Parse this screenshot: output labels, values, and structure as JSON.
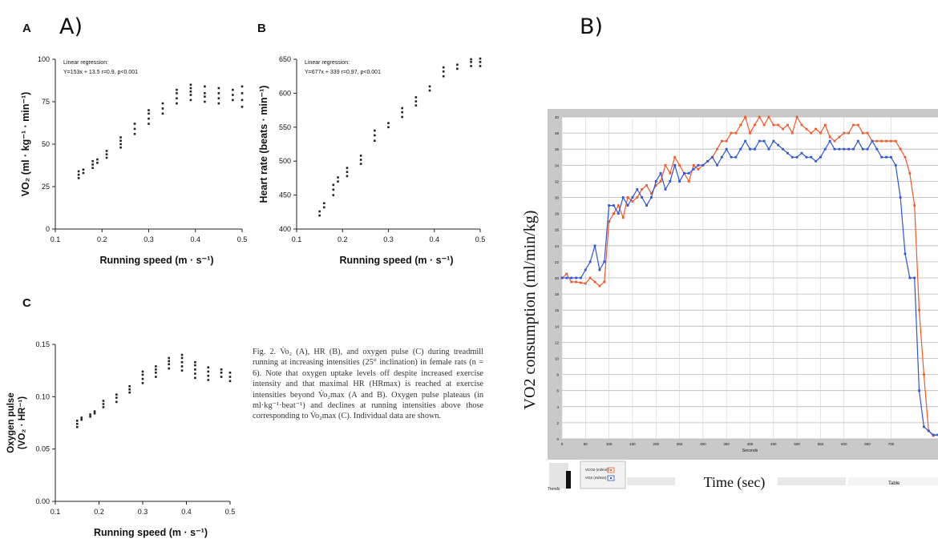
{
  "figure": {
    "label_A": "A)",
    "label_B": "B)"
  },
  "caption": "Fig. 2. V̇o₂ (A), HR (B), and oxygen pulse (C) during treadmill running at increasing intensities (25° inclination) in female rats (n = 6). Note that oxygen uptake levels off despite increased exercise intensity and that maximal HR (HRmax) is reached at exercise intensities beyond V̇o₂max (A and B). Oxygen pulse plateaus (in ml·kg⁻¹·beat⁻¹) and declines at running intensities above those corresponding to V̇o₂max (C). Individual data are shown.",
  "chart_data": [
    {
      "panel": "A",
      "type": "scatter",
      "xlabel": "Running speed (m · s⁻¹)",
      "ylabel": "VO₂ (ml · kg⁻¹ · min⁻¹)",
      "xlim": [
        0.1,
        0.5
      ],
      "ylim": [
        0,
        100
      ],
      "xticks": [
        0.1,
        0.2,
        0.3,
        0.4,
        0.5
      ],
      "yticks": [
        0,
        25,
        50,
        75,
        100
      ],
      "annotation": [
        "Linear regression:",
        "Y=153x + 13.5  r=0.9,  p<0.001"
      ],
      "points": [
        [
          0.15,
          30
        ],
        [
          0.15,
          32
        ],
        [
          0.15,
          34
        ],
        [
          0.16,
          33
        ],
        [
          0.16,
          35
        ],
        [
          0.18,
          36
        ],
        [
          0.18,
          38
        ],
        [
          0.18,
          40
        ],
        [
          0.19,
          39
        ],
        [
          0.19,
          41
        ],
        [
          0.21,
          42
        ],
        [
          0.21,
          44
        ],
        [
          0.21,
          46
        ],
        [
          0.24,
          48
        ],
        [
          0.24,
          50
        ],
        [
          0.24,
          52
        ],
        [
          0.24,
          54
        ],
        [
          0.27,
          56
        ],
        [
          0.27,
          59
        ],
        [
          0.27,
          62
        ],
        [
          0.3,
          62
        ],
        [
          0.3,
          65
        ],
        [
          0.3,
          68
        ],
        [
          0.3,
          70
        ],
        [
          0.33,
          68
        ],
        [
          0.33,
          71
        ],
        [
          0.33,
          74
        ],
        [
          0.36,
          74
        ],
        [
          0.36,
          77
        ],
        [
          0.36,
          80
        ],
        [
          0.36,
          82
        ],
        [
          0.39,
          76
        ],
        [
          0.39,
          79
        ],
        [
          0.39,
          81
        ],
        [
          0.39,
          83
        ],
        [
          0.39,
          85
        ],
        [
          0.42,
          75
        ],
        [
          0.42,
          78
        ],
        [
          0.42,
          80
        ],
        [
          0.42,
          84
        ],
        [
          0.45,
          74
        ],
        [
          0.45,
          77
        ],
        [
          0.45,
          80
        ],
        [
          0.45,
          83
        ],
        [
          0.48,
          76
        ],
        [
          0.48,
          79
        ],
        [
          0.48,
          82
        ],
        [
          0.5,
          72
        ],
        [
          0.5,
          76
        ],
        [
          0.5,
          80
        ],
        [
          0.5,
          84
        ]
      ]
    },
    {
      "panel": "B",
      "type": "scatter",
      "xlabel": "Running speed (m · s⁻¹)",
      "ylabel": "Heart rate (beats · min⁻¹)",
      "xlim": [
        0.1,
        0.5
      ],
      "ylim": [
        400,
        650
      ],
      "xticks": [
        0.1,
        0.2,
        0.3,
        0.4,
        0.5
      ],
      "yticks": [
        400,
        450,
        500,
        550,
        600,
        650
      ],
      "annotation": [
        "Linear regression:",
        "Y=677x + 339  r=0.97,  p<0.001"
      ],
      "points": [
        [
          0.15,
          420
        ],
        [
          0.15,
          426
        ],
        [
          0.16,
          432
        ],
        [
          0.16,
          438
        ],
        [
          0.18,
          450
        ],
        [
          0.18,
          458
        ],
        [
          0.18,
          465
        ],
        [
          0.19,
          470
        ],
        [
          0.19,
          476
        ],
        [
          0.21,
          478
        ],
        [
          0.21,
          484
        ],
        [
          0.21,
          490
        ],
        [
          0.24,
          496
        ],
        [
          0.24,
          502
        ],
        [
          0.24,
          508
        ],
        [
          0.27,
          530
        ],
        [
          0.27,
          538
        ],
        [
          0.27,
          545
        ],
        [
          0.3,
          550
        ],
        [
          0.3,
          556
        ],
        [
          0.33,
          565
        ],
        [
          0.33,
          572
        ],
        [
          0.33,
          578
        ],
        [
          0.36,
          582
        ],
        [
          0.36,
          588
        ],
        [
          0.36,
          594
        ],
        [
          0.39,
          604
        ],
        [
          0.39,
          610
        ],
        [
          0.42,
          625
        ],
        [
          0.42,
          632
        ],
        [
          0.42,
          638
        ],
        [
          0.45,
          636
        ],
        [
          0.45,
          642
        ],
        [
          0.48,
          640
        ],
        [
          0.48,
          646
        ],
        [
          0.48,
          650
        ],
        [
          0.5,
          640
        ],
        [
          0.5,
          646
        ],
        [
          0.5,
          651
        ]
      ]
    },
    {
      "panel": "C",
      "type": "scatter",
      "xlabel": "Running speed (m · s⁻¹)",
      "ylabel": "Oxygen pulse (VO₂ · HR⁻¹)",
      "xlim": [
        0.1,
        0.5
      ],
      "ylim": [
        0.0,
        0.15
      ],
      "xticks": [
        0.1,
        0.2,
        0.3,
        0.4,
        0.5
      ],
      "yticks": [
        0.0,
        0.05,
        0.1,
        0.15
      ],
      "points": [
        [
          0.15,
          0.071
        ],
        [
          0.15,
          0.074
        ],
        [
          0.15,
          0.077
        ],
        [
          0.16,
          0.078
        ],
        [
          0.16,
          0.08
        ],
        [
          0.18,
          0.081
        ],
        [
          0.18,
          0.083
        ],
        [
          0.19,
          0.084
        ],
        [
          0.19,
          0.086
        ],
        [
          0.21,
          0.09
        ],
        [
          0.21,
          0.093
        ],
        [
          0.21,
          0.096
        ],
        [
          0.24,
          0.095
        ],
        [
          0.24,
          0.099
        ],
        [
          0.24,
          0.102
        ],
        [
          0.27,
          0.104
        ],
        [
          0.27,
          0.107
        ],
        [
          0.27,
          0.11
        ],
        [
          0.3,
          0.113
        ],
        [
          0.3,
          0.117
        ],
        [
          0.3,
          0.121
        ],
        [
          0.3,
          0.124
        ],
        [
          0.33,
          0.119
        ],
        [
          0.33,
          0.123
        ],
        [
          0.33,
          0.126
        ],
        [
          0.33,
          0.129
        ],
        [
          0.36,
          0.127
        ],
        [
          0.36,
          0.131
        ],
        [
          0.36,
          0.134
        ],
        [
          0.36,
          0.137
        ],
        [
          0.39,
          0.125
        ],
        [
          0.39,
          0.129
        ],
        [
          0.39,
          0.133
        ],
        [
          0.39,
          0.137
        ],
        [
          0.39,
          0.14
        ],
        [
          0.42,
          0.118
        ],
        [
          0.42,
          0.122
        ],
        [
          0.42,
          0.126
        ],
        [
          0.42,
          0.13
        ],
        [
          0.42,
          0.133
        ],
        [
          0.45,
          0.116
        ],
        [
          0.45,
          0.12
        ],
        [
          0.45,
          0.124
        ],
        [
          0.45,
          0.128
        ],
        [
          0.48,
          0.119
        ],
        [
          0.48,
          0.123
        ],
        [
          0.48,
          0.126
        ],
        [
          0.5,
          0.115
        ],
        [
          0.5,
          0.119
        ],
        [
          0.5,
          0.123
        ]
      ]
    },
    {
      "panel": "B)",
      "type": "line",
      "xlabel": "Time (sec)",
      "ylabel": "VO2 consumption (ml/min/kg)",
      "axis_sublabel": "Seconds",
      "xlim": [
        0,
        800
      ],
      "ylim": [
        0,
        40
      ],
      "xticks": [
        0,
        50,
        100,
        150,
        200,
        250,
        300,
        350,
        400,
        450,
        500,
        550,
        600,
        650,
        700
      ],
      "yticks": [
        0,
        2,
        4,
        6,
        8,
        10,
        12,
        14,
        16,
        18,
        20,
        22,
        24,
        26,
        28,
        30,
        32,
        34,
        36,
        38,
        40
      ],
      "legend": [
        "VCO2 (ml/min)",
        "VO2 (ml/min)"
      ],
      "bottom_strip": {
        "left_label": "Trends",
        "right_label": "Table"
      },
      "series": [
        {
          "name": "VCO2 (ml/min)",
          "color": "#ee5a2a",
          "x": [
            0,
            10,
            20,
            30,
            40,
            50,
            60,
            70,
            80,
            90,
            100,
            110,
            120,
            130,
            140,
            150,
            160,
            170,
            180,
            190,
            200,
            210,
            220,
            230,
            240,
            250,
            260,
            270,
            280,
            290,
            300,
            310,
            320,
            330,
            340,
            350,
            360,
            370,
            380,
            390,
            400,
            410,
            420,
            430,
            440,
            450,
            460,
            470,
            480,
            490,
            500,
            510,
            520,
            530,
            540,
            550,
            560,
            570,
            580,
            590,
            600,
            610,
            620,
            630,
            640,
            650,
            660,
            670,
            680,
            690,
            700,
            710,
            720,
            730,
            740,
            750,
            760,
            770,
            780,
            790,
            800
          ],
          "y": [
            20,
            20.5,
            19.5,
            19.5,
            19.4,
            19.3,
            20,
            19.5,
            19,
            19.5,
            27,
            28,
            29,
            27.5,
            30,
            29.5,
            30,
            31,
            31.5,
            30.5,
            31.5,
            32,
            34,
            33,
            35,
            34,
            33,
            32,
            34,
            33.5,
            34,
            34.5,
            35,
            36,
            37,
            37,
            38,
            38,
            39,
            40,
            38,
            39,
            40,
            39,
            40,
            39,
            39,
            38.5,
            39,
            38,
            40,
            39,
            38.5,
            38,
            38.5,
            38,
            39,
            37.5,
            37,
            37.5,
            38,
            38,
            39,
            39,
            38,
            38,
            37,
            37,
            37,
            37,
            37,
            37,
            36,
            35,
            33,
            29,
            16,
            8,
            1,
            0.4,
            0.5
          ]
        },
        {
          "name": "VO2 (ml/min)",
          "color": "#2f55d4",
          "x": [
            0,
            10,
            20,
            30,
            40,
            50,
            60,
            70,
            80,
            90,
            100,
            110,
            120,
            130,
            140,
            150,
            160,
            170,
            180,
            190,
            200,
            210,
            220,
            230,
            240,
            250,
            260,
            270,
            280,
            290,
            300,
            310,
            320,
            330,
            340,
            350,
            360,
            370,
            380,
            390,
            400,
            410,
            420,
            430,
            440,
            450,
            460,
            470,
            480,
            490,
            500,
            510,
            520,
            530,
            540,
            550,
            560,
            570,
            580,
            590,
            600,
            610,
            620,
            630,
            640,
            650,
            660,
            670,
            680,
            690,
            700,
            710,
            720,
            730,
            740,
            750,
            760,
            770,
            780,
            790,
            800
          ],
          "y": [
            20,
            20,
            20,
            20,
            20,
            21,
            22,
            24,
            21,
            22,
            29,
            29,
            28,
            30,
            29,
            30,
            31,
            30,
            29,
            30,
            32,
            33,
            31,
            32,
            34,
            32,
            33,
            33,
            33.5,
            34,
            34,
            34.5,
            35,
            34,
            35,
            36,
            35,
            35,
            36,
            37,
            36,
            36,
            37,
            37,
            36,
            37,
            36.5,
            36,
            35.5,
            35,
            35,
            35.5,
            35,
            35,
            34.5,
            35,
            36,
            37,
            36,
            36,
            36,
            36,
            36,
            37,
            36,
            36,
            37,
            36,
            35,
            35,
            35,
            34,
            30,
            23,
            20,
            20,
            6,
            1.5,
            1,
            0.5,
            0.5
          ]
        }
      ]
    }
  ]
}
